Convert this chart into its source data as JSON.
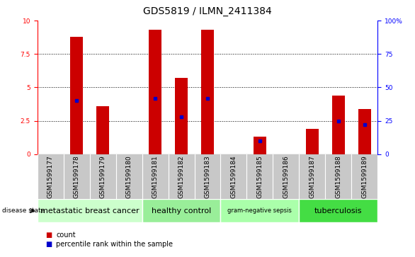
{
  "title": "GDS5819 / ILMN_2411384",
  "samples": [
    "GSM1599177",
    "GSM1599178",
    "GSM1599179",
    "GSM1599180",
    "GSM1599181",
    "GSM1599182",
    "GSM1599183",
    "GSM1599184",
    "GSM1599185",
    "GSM1599186",
    "GSM1599187",
    "GSM1599188",
    "GSM1599189"
  ],
  "counts": [
    0.0,
    8.8,
    3.6,
    0.0,
    9.3,
    5.7,
    9.3,
    0.0,
    1.3,
    0.0,
    1.9,
    4.4,
    3.4
  ],
  "percentile_ranks": [
    0.0,
    4.0,
    0.0,
    0.0,
    4.2,
    2.8,
    4.2,
    0.0,
    1.0,
    0.0,
    0.0,
    2.5,
    2.2
  ],
  "bar_color": "#cc0000",
  "dot_color": "#0000cc",
  "ylim": [
    0,
    10
  ],
  "yticks": [
    0,
    2.5,
    5,
    7.5,
    10
  ],
  "ytick_labels_left": [
    "0",
    "2.5",
    "5",
    "7.5",
    "10"
  ],
  "ytick_labels_right": [
    "0",
    "25",
    "50",
    "75",
    "100%"
  ],
  "xlabel_bg": "#c8c8c8",
  "groups": [
    {
      "label": "metastatic breast cancer",
      "start": 0,
      "end": 3,
      "color": "#ccffcc"
    },
    {
      "label": "healthy control",
      "start": 4,
      "end": 6,
      "color": "#99ee99"
    },
    {
      "label": "gram-negative sepsis",
      "start": 7,
      "end": 9,
      "color": "#aaffaa"
    },
    {
      "label": "tuberculosis",
      "start": 10,
      "end": 12,
      "color": "#44dd44"
    }
  ],
  "disease_state_label": "disease state",
  "legend_count_label": "count",
  "legend_pct_label": "percentile rank within the sample",
  "title_fontsize": 10,
  "tick_fontsize": 6.5,
  "group_fontsize": 8,
  "group_fontsize_small": 6
}
